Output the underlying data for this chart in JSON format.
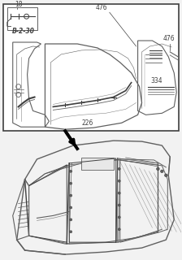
{
  "bg_color": "#f2f2f2",
  "white": "#ffffff",
  "line_dark": "#404040",
  "line_mid": "#606060",
  "line_light": "#888888",
  "label_18": "18",
  "label_b230": "B-2-30",
  "label_476a": "476",
  "label_476b": "476",
  "label_334": "334",
  "label_226": "226",
  "figsize": [
    2.24,
    3.2
  ],
  "dpi": 100
}
